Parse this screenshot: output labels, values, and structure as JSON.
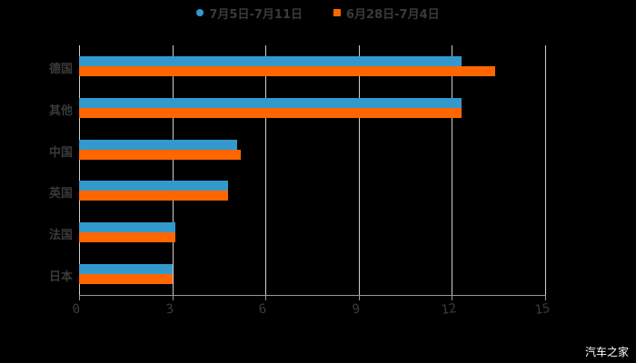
{
  "chart_data": {
    "type": "bar",
    "orientation": "horizontal",
    "title": "",
    "categories": [
      "德国",
      "其他",
      "中国",
      "英国",
      "法国",
      "日本"
    ],
    "series": [
      {
        "name": "7月5日-7月11日",
        "color": "#3399cc",
        "values": [
          12.3,
          12.3,
          5.1,
          4.8,
          3.1,
          3.0
        ]
      },
      {
        "name": "6月28日-7月4日",
        "color": "#ff6600",
        "values": [
          13.4,
          12.3,
          5.2,
          4.8,
          3.1,
          3.0
        ]
      }
    ],
    "xlabel": "",
    "ylabel": "",
    "xlim": [
      0,
      15
    ],
    "xticks": [
      "0",
      "3",
      "6",
      "9",
      "12",
      "15"
    ],
    "grid": true,
    "legend_position": "top"
  },
  "legend": {
    "series_1": "7月5日-7月11日",
    "series_2": "6月28日-7月4日"
  },
  "watermark": "汽车之家"
}
